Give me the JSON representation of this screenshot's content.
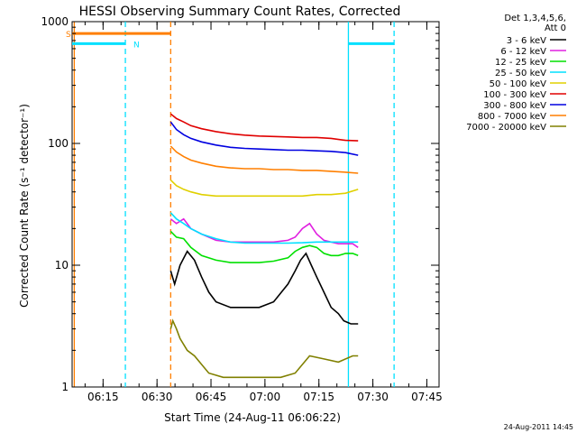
{
  "chart_data": {
    "type": "line",
    "title": "HESSI Observing Summary Count Rates, Corrected",
    "xlabel": "Start Time (24-Aug-11 06:06:22)",
    "ylabel": "Corrected Count Rate (s⁻¹ detector⁻¹)",
    "yscale": "log",
    "ylim": [
      1,
      1000
    ],
    "xlim_minutes_after_start": [
      0,
      102
    ],
    "x_ticks": [
      {
        "label": "06:15",
        "min": 8.6
      },
      {
        "label": "06:30",
        "min": 23.6
      },
      {
        "label": "06:45",
        "min": 38.6
      },
      {
        "label": "07:00",
        "min": 53.6
      },
      {
        "label": "07:15",
        "min": 68.6
      },
      {
        "label": "07:30",
        "min": 83.6
      },
      {
        "label": "07:45",
        "min": 98.6
      }
    ],
    "y_ticks": [
      {
        "label": "1",
        "value": 1
      },
      {
        "label": "10",
        "value": 10
      },
      {
        "label": "100",
        "value": 100
      },
      {
        "label": "1000",
        "value": 1000
      }
    ],
    "legend": {
      "placement": "right",
      "header": [
        "Det 1,3,4,5,6,",
        "Att 0"
      ],
      "entries": [
        {
          "label": "3 - 6 keV",
          "color": "#000000"
        },
        {
          "label": "6 - 12 keV",
          "color": "#e020e0"
        },
        {
          "label": "12 - 25 keV",
          "color": "#00e000"
        },
        {
          "label": "25 - 50 keV",
          "color": "#00e0ff"
        },
        {
          "label": "50 - 100 keV",
          "color": "#e0d000"
        },
        {
          "label": "100 - 300 keV",
          "color": "#e00000"
        },
        {
          "label": "300 - 800 keV",
          "color": "#0000e0"
        },
        {
          "label": "800 - 7000 keV",
          "color": "#ff7f00"
        },
        {
          "label": "7000 - 20000 keV",
          "color": "#808000"
        }
      ]
    },
    "series": [
      {
        "name": "3 - 6 keV",
        "color": "#000000",
        "x": [
          27.4,
          28.5,
          30,
          32,
          34,
          36,
          38,
          40,
          44,
          48,
          52,
          56,
          60,
          62,
          63.5,
          65,
          66.5,
          68,
          70,
          72,
          74,
          75.5,
          77.5,
          79.5
        ],
        "y": [
          9,
          7,
          10,
          13,
          11,
          8,
          6,
          5,
          4.5,
          4.5,
          4.5,
          5,
          7,
          9,
          11,
          12.5,
          10,
          8,
          6,
          4.5,
          4,
          3.5,
          3.3,
          3.3
        ]
      },
      {
        "name": "6 - 12 keV",
        "color": "#e020e0",
        "x": [
          27.4,
          29,
          31,
          33,
          36,
          40,
          44,
          48,
          52,
          56,
          60,
          62,
          64,
          66,
          68,
          70,
          72,
          74,
          76,
          78,
          79.5
        ],
        "y": [
          24,
          22,
          24,
          20,
          18,
          16,
          15.5,
          15.5,
          15.5,
          15.5,
          16,
          17,
          20,
          22,
          18,
          16,
          15.5,
          15,
          15,
          15,
          14
        ]
      },
      {
        "name": "12 - 25 keV",
        "color": "#00e000",
        "x": [
          27.4,
          29,
          31,
          33,
          36,
          40,
          44,
          48,
          52,
          56,
          60,
          62,
          64,
          66,
          68,
          70,
          72,
          74,
          76,
          78,
          79.5
        ],
        "y": [
          19,
          17,
          16.5,
          14,
          12,
          11,
          10.5,
          10.5,
          10.5,
          10.8,
          11.5,
          13,
          14,
          14.5,
          14,
          12.5,
          12,
          12,
          12.5,
          12.5,
          12
        ]
      },
      {
        "name": "25 - 50 keV",
        "color": "#00e0ff",
        "x": [
          27.4,
          29,
          31,
          33,
          36,
          40,
          44,
          48,
          52,
          56,
          60,
          64,
          68,
          72,
          76,
          79.5
        ],
        "y": [
          27,
          24,
          22,
          20,
          18,
          16.5,
          15.5,
          15.2,
          15.2,
          15.2,
          15.2,
          15.3,
          15.5,
          15.5,
          15.5,
          15.5
        ]
      },
      {
        "name": "50 - 100 keV",
        "color": "#e0d000",
        "x": [
          27.4,
          29,
          31,
          33,
          36,
          40,
          44,
          48,
          52,
          56,
          60,
          64,
          68,
          72,
          76,
          79.5
        ],
        "y": [
          50,
          45,
          42,
          40,
          38,
          37,
          37,
          37,
          37,
          37,
          37,
          37,
          38,
          38,
          39,
          42
        ]
      },
      {
        "name": "100 - 300 keV",
        "color": "#e00000",
        "x": [
          27.4,
          29,
          31,
          33,
          36,
          40,
          44,
          48,
          52,
          56,
          60,
          64,
          68,
          72,
          76,
          79.5
        ],
        "y": [
          175,
          160,
          150,
          140,
          132,
          125,
          120,
          117,
          115,
          114,
          113,
          112,
          112,
          110,
          106,
          105
        ]
      },
      {
        "name": "300 - 800 keV",
        "color": "#0000e0",
        "x": [
          27.4,
          29,
          31,
          33,
          36,
          40,
          44,
          48,
          52,
          56,
          60,
          64,
          68,
          72,
          76,
          79.5
        ],
        "y": [
          150,
          130,
          118,
          110,
          103,
          97,
          93,
          91,
          90,
          89,
          88,
          88,
          87,
          86,
          84,
          80
        ]
      },
      {
        "name": "800 - 7000 keV",
        "color": "#ff7f00",
        "x": [
          27.4,
          29,
          31,
          33,
          36,
          40,
          44,
          48,
          52,
          56,
          60,
          64,
          68,
          72,
          76,
          79.5
        ],
        "y": [
          95,
          85,
          78,
          73,
          69,
          65,
          63,
          62,
          62,
          61,
          61,
          60,
          60,
          59,
          58,
          57
        ]
      },
      {
        "name": "7000 - 20000 keV",
        "color": "#808000",
        "x": [
          27.4,
          28,
          29,
          30,
          32,
          34,
          38,
          42,
          46,
          50,
          54,
          58,
          62,
          66,
          70,
          74,
          78,
          79.5
        ],
        "y": [
          3,
          3.5,
          3,
          2.5,
          2,
          1.8,
          1.3,
          1.2,
          1.2,
          1.2,
          1.2,
          1.2,
          1.3,
          1.8,
          1.7,
          1.6,
          1.8,
          1.8
        ]
      }
    ],
    "overlays": {
      "flags": [
        {
          "label": "S",
          "color": "#ff7f00",
          "segments": [
            [
              0,
              27.4
            ]
          ],
          "level": 800
        },
        {
          "label": "N",
          "color": "#00e0ff",
          "segments": [
            [
              0,
              14.8
            ],
            [
              76.8,
              89.5
            ]
          ],
          "level": 660
        }
      ],
      "vlines": [
        {
          "min": 0.6,
          "color": "#ff7f00",
          "style": "solid"
        },
        {
          "min": 14.8,
          "color": "#00e0ff",
          "style": "dashed"
        },
        {
          "min": 27.4,
          "color": "#ff7f00",
          "style": "dashed"
        },
        {
          "min": 76.8,
          "color": "#00e0ff",
          "style": "solid"
        },
        {
          "min": 89.5,
          "color": "#00e0ff",
          "style": "dashed"
        }
      ]
    },
    "grid": false
  },
  "footer": {
    "timestamp": "24-Aug-2011 14:45"
  }
}
